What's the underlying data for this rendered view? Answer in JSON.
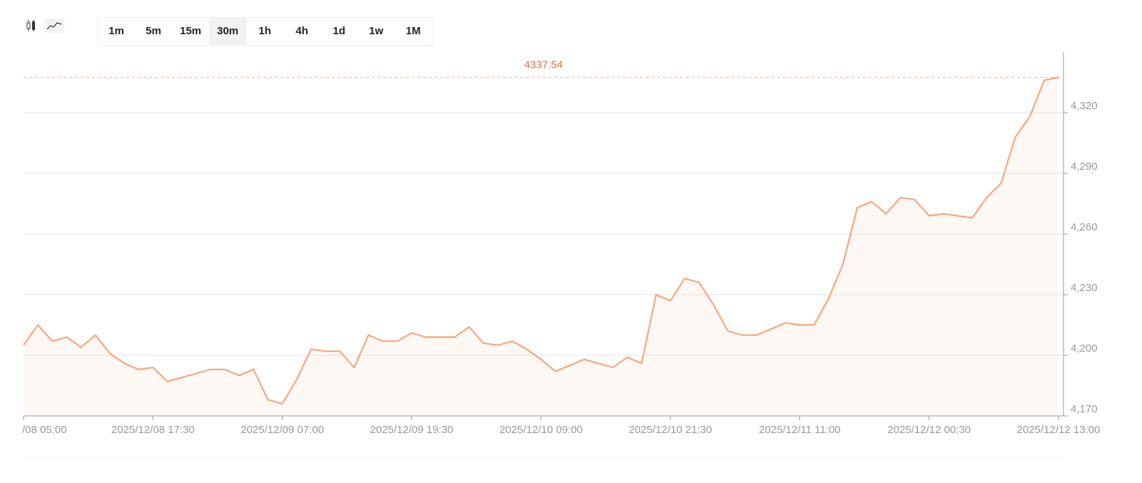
{
  "toolbar": {
    "timeframes": [
      "1m",
      "5m",
      "15m",
      "30m",
      "1h",
      "4h",
      "1d",
      "1w",
      "1M"
    ],
    "active": "30m"
  },
  "chart_data": {
    "type": "line",
    "categories": [
      "/08 05:00",
      null,
      null,
      null,
      null,
      null,
      null,
      null,
      null,
      "2025/12/08 17:30",
      null,
      null,
      null,
      null,
      null,
      null,
      null,
      null,
      "2025/12/09 07:00",
      null,
      null,
      null,
      null,
      null,
      null,
      null,
      null,
      "2025/12/09 19:30",
      null,
      null,
      null,
      null,
      null,
      null,
      null,
      null,
      "2025/12/10 09:00",
      null,
      null,
      null,
      null,
      null,
      null,
      null,
      null,
      "2025/12/10 21:30",
      null,
      null,
      null,
      null,
      null,
      null,
      null,
      null,
      "2025/12/11 11:00",
      null,
      null,
      null,
      null,
      null,
      null,
      null,
      null,
      "2025/12/12 00:30",
      null,
      null,
      null,
      null,
      null,
      null,
      null,
      null,
      "2025/12/12 13:00"
    ],
    "series": [
      {
        "color": "#f5a77f",
        "values": [
          4205,
          4215,
          4207,
          4209,
          4204,
          4210,
          4201,
          4196,
          4193,
          4194,
          4187,
          4189,
          4191,
          4193,
          4193,
          4190,
          4193,
          4178,
          4176,
          4188,
          4203,
          4202,
          4202,
          4194,
          4210,
          4207,
          4207,
          4211,
          4209,
          4209,
          4209,
          4214,
          4206,
          4205,
          4207,
          4203,
          4198,
          4192,
          4195,
          4198,
          4196,
          4194,
          4199,
          4196,
          4230,
          4227,
          4238,
          4236,
          4225,
          4212,
          4210,
          4210,
          4213,
          4216,
          4215,
          4215,
          4228,
          4245,
          4273,
          4276,
          4270,
          4278,
          4277,
          4269,
          4270,
          4269,
          4268,
          4278,
          4285,
          4308,
          4318,
          4336,
          4337.54
        ]
      }
    ],
    "last_price": 4337.54,
    "ylim": [
      4170,
      4350
    ],
    "yticks": [
      {
        "value": 4170,
        "label": "4,170"
      },
      {
        "value": 4200,
        "label": "4,200"
      },
      {
        "value": 4230,
        "label": "4,230"
      },
      {
        "value": 4260,
        "label": "4,260"
      },
      {
        "value": 4290,
        "label": "4,290"
      },
      {
        "value": 4320,
        "label": "4,320"
      }
    ],
    "grid": true
  }
}
